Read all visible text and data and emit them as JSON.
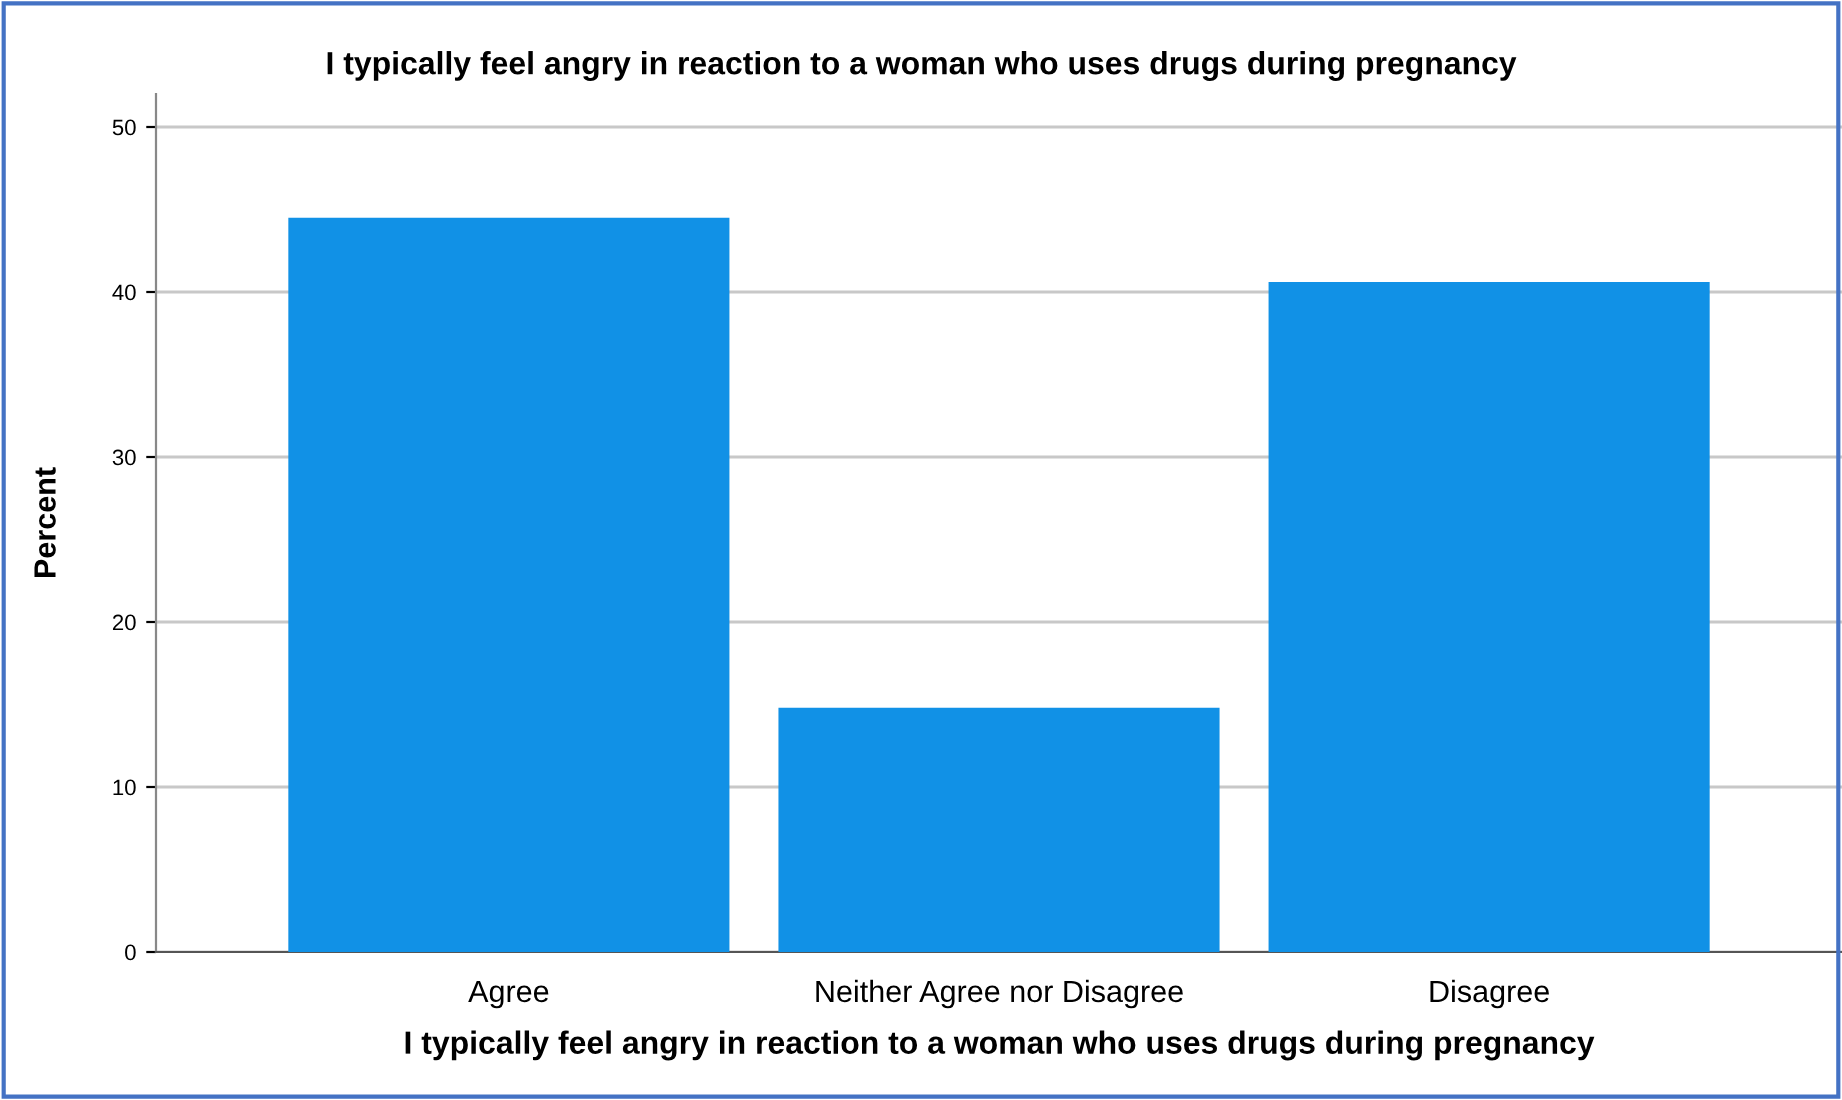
{
  "chart_data": {
    "type": "bar",
    "title": "I typically feel angry in reaction to a woman who uses drugs during pregnancy",
    "xlabel": "I typically feel angry in reaction to a woman who uses drugs during pregnancy",
    "ylabel": "Percent",
    "categories": [
      "Agree",
      "Neither Agree nor Disagree",
      "Disagree"
    ],
    "values": [
      44.5,
      14.8,
      40.6
    ],
    "color": "#1191e6",
    "ylim": [
      0,
      52
    ],
    "yticks": [
      0,
      10,
      20,
      30,
      40,
      50
    ],
    "grid": "y"
  }
}
